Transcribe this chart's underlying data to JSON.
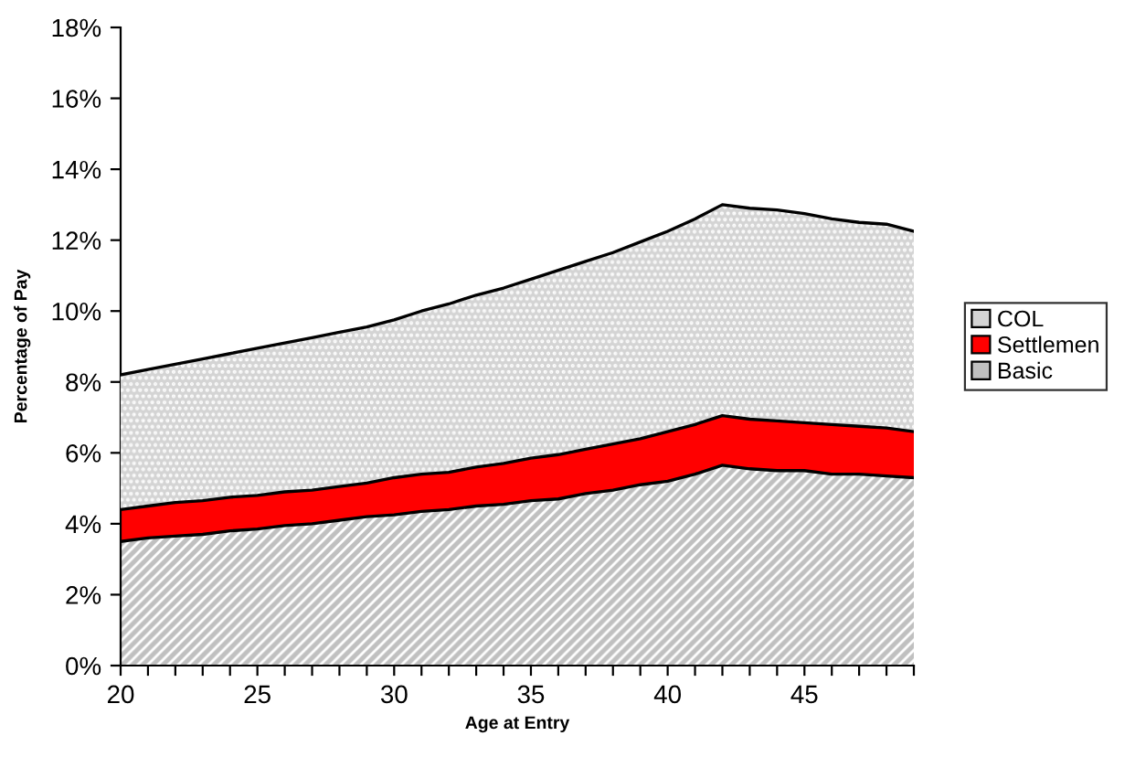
{
  "chart_data": {
    "type": "area",
    "stacked": true,
    "xlabel": "Age at Entry",
    "ylabel": "Percentage of Pay",
    "x": [
      20,
      21,
      22,
      23,
      24,
      25,
      26,
      27,
      28,
      29,
      30,
      31,
      32,
      33,
      34,
      35,
      36,
      37,
      38,
      39,
      40,
      41,
      42,
      43,
      44,
      45,
      46,
      47,
      48,
      49
    ],
    "series": [
      {
        "name": "Basic",
        "color": "#c0c0c0",
        "values": [
          3.5,
          3.6,
          3.65,
          3.7,
          3.8,
          3.85,
          3.95,
          4.0,
          4.1,
          4.2,
          4.25,
          4.35,
          4.4,
          4.5,
          4.55,
          4.65,
          4.7,
          4.85,
          4.95,
          5.1,
          5.2,
          5.4,
          5.65,
          5.55,
          5.5,
          5.5,
          5.4,
          5.4,
          5.35,
          5.3
        ]
      },
      {
        "name": "Settlemen",
        "color": "#ff0000",
        "values": [
          0.9,
          0.9,
          0.95,
          0.95,
          0.95,
          0.95,
          0.95,
          0.95,
          0.95,
          0.95,
          1.05,
          1.05,
          1.05,
          1.1,
          1.15,
          1.2,
          1.25,
          1.25,
          1.3,
          1.3,
          1.4,
          1.4,
          1.4,
          1.4,
          1.4,
          1.35,
          1.4,
          1.35,
          1.35,
          1.3
        ]
      },
      {
        "name": "COL",
        "color": "#d4d4d4",
        "values": [
          3.8,
          3.85,
          3.9,
          4.0,
          4.05,
          4.15,
          4.2,
          4.3,
          4.35,
          4.4,
          4.45,
          4.6,
          4.75,
          4.85,
          4.95,
          5.05,
          5.2,
          5.3,
          5.4,
          5.55,
          5.65,
          5.8,
          5.95,
          5.95,
          5.95,
          5.9,
          5.8,
          5.75,
          5.75,
          5.65
        ]
      }
    ],
    "xlim": [
      20,
      49
    ],
    "xticks": [
      20,
      {
        "value": 21,
        "label": null
      },
      {
        "value": 22,
        "label": null
      },
      {
        "value": 23,
        "label": null
      },
      {
        "value": 24,
        "label": null
      },
      25,
      {
        "value": 26,
        "label": null
      },
      {
        "value": 27,
        "label": null
      },
      {
        "value": 28,
        "label": null
      },
      {
        "value": 29,
        "label": null
      },
      30,
      {
        "value": 31,
        "label": null
      },
      {
        "value": 32,
        "label": null
      },
      {
        "value": 33,
        "label": null
      },
      {
        "value": 34,
        "label": null
      },
      35,
      {
        "value": 36,
        "label": null
      },
      {
        "value": 37,
        "label": null
      },
      {
        "value": 38,
        "label": null
      },
      {
        "value": 39,
        "label": null
      },
      40,
      {
        "value": 41,
        "label": null
      },
      {
        "value": 42,
        "label": null
      },
      {
        "value": 43,
        "label": null
      },
      {
        "value": 44,
        "label": null
      },
      45,
      {
        "value": 46,
        "label": null
      },
      {
        "value": 47,
        "label": null
      },
      {
        "value": 48,
        "label": null
      },
      {
        "value": 49,
        "label": null
      }
    ],
    "ylim": [
      0,
      18
    ],
    "yticks": [
      {
        "value": 0,
        "label": "0%"
      },
      {
        "value": 2,
        "label": "2%"
      },
      {
        "value": 4,
        "label": "4%"
      },
      {
        "value": 6,
        "label": "6%"
      },
      {
        "value": 8,
        "label": "8%"
      },
      {
        "value": 10,
        "label": "10%"
      },
      {
        "value": 12,
        "label": "12%"
      },
      {
        "value": 14,
        "label": "14%"
      },
      {
        "value": 16,
        "label": "16%"
      },
      {
        "value": 18,
        "label": "18%"
      }
    ],
    "grid": false,
    "legend": "right"
  }
}
